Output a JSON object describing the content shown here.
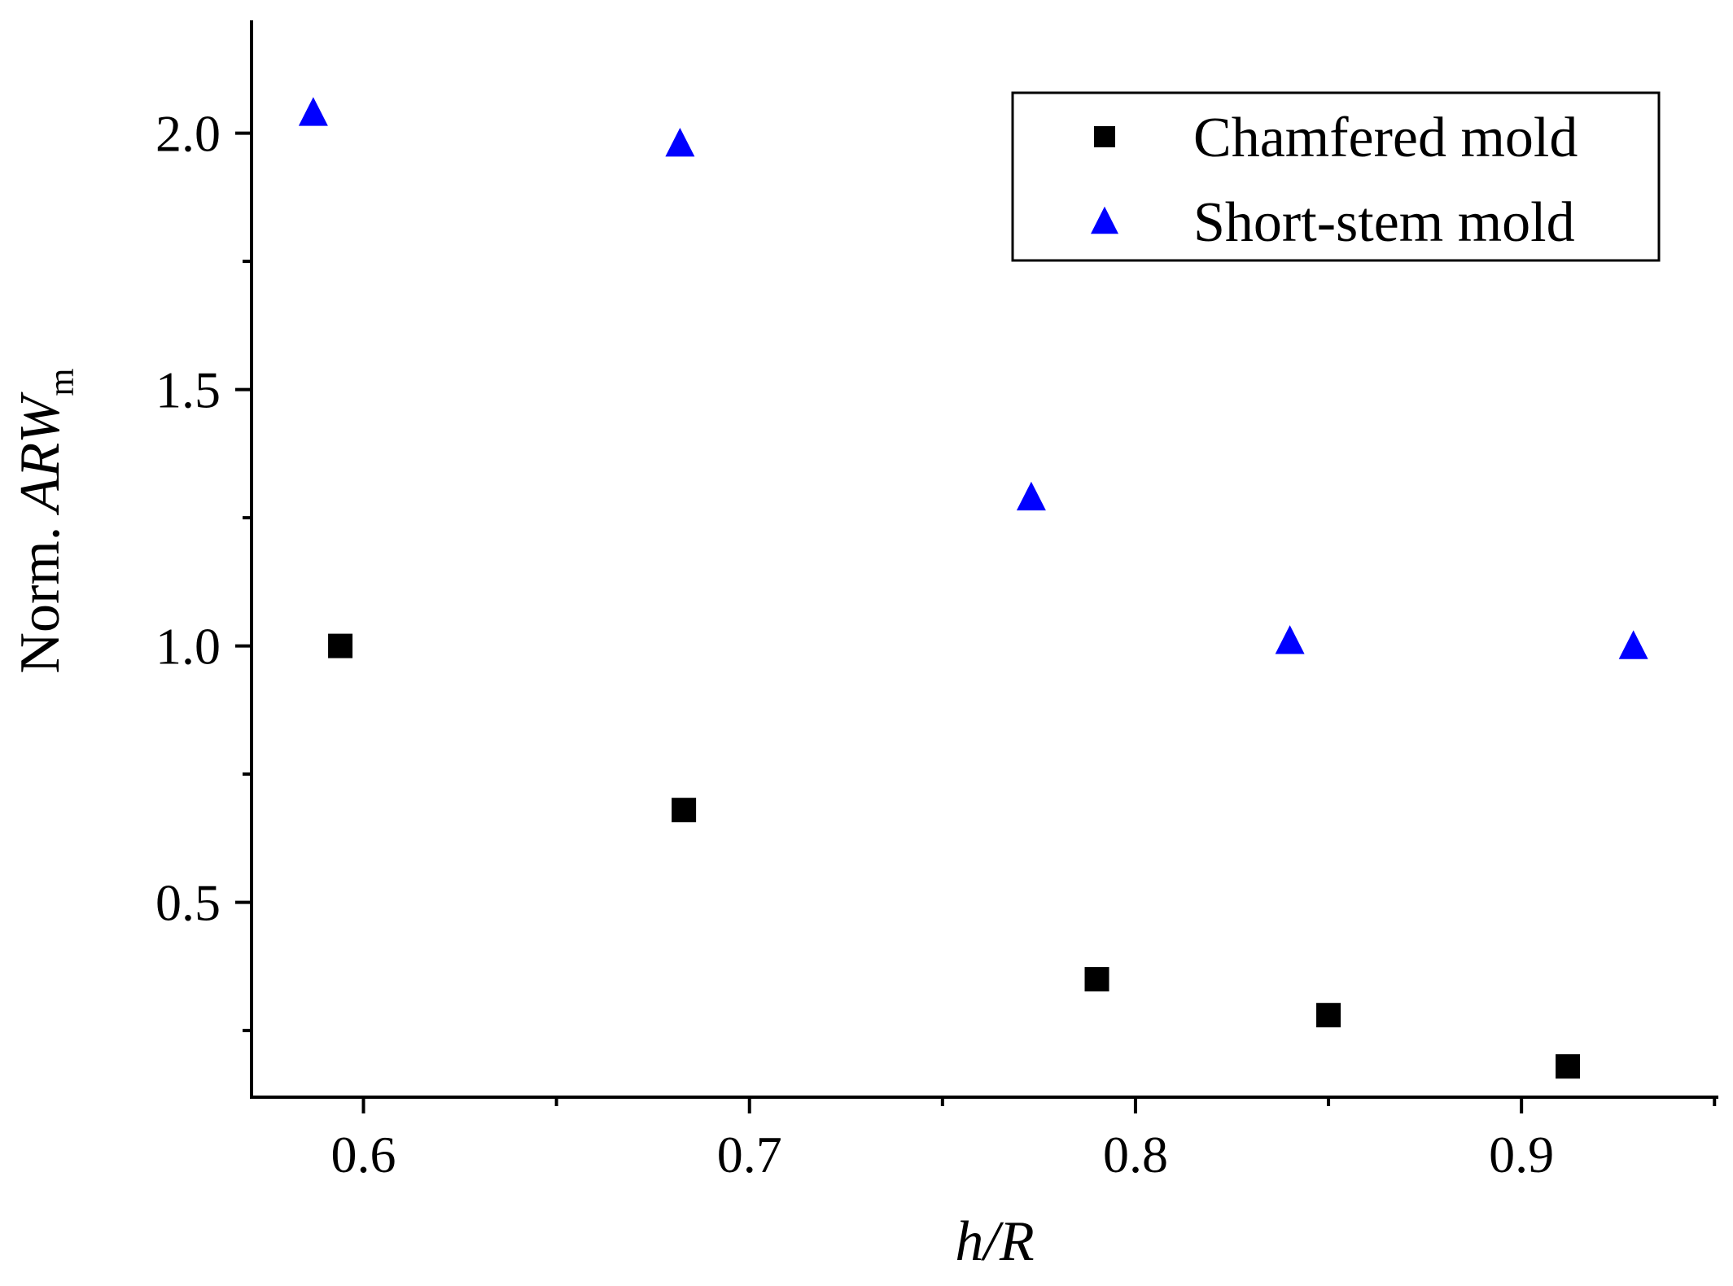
{
  "chart_data": {
    "type": "scatter",
    "title": "",
    "xlabel": {
      "italic_part": "h/R"
    },
    "ylabel": {
      "prefix": "Norm. ",
      "italic_part": "ARW",
      "subscript": "m"
    },
    "xlim": [
      0.571,
      0.951
    ],
    "ylim": [
      0.12,
      2.22
    ],
    "x_ticks": [
      0.6,
      0.7,
      0.8,
      0.9
    ],
    "x_tick_labels": [
      "0.6",
      "0.7",
      "0.8",
      "0.9"
    ],
    "x_minor_ticks": [
      0.65,
      0.75,
      0.85,
      0.95
    ],
    "y_ticks": [
      0.5,
      1.0,
      1.5,
      2.0
    ],
    "y_tick_labels": [
      "0.5",
      "1.0",
      "1.5",
      "2.0"
    ],
    "y_minor_ticks": [
      0.25,
      0.75,
      1.25,
      1.75
    ],
    "grid": false,
    "legend_position": "top-right",
    "series": [
      {
        "name": "Chamfered mold",
        "marker": "square",
        "color": "#000000",
        "points": [
          {
            "x": 0.594,
            "y": 1.0
          },
          {
            "x": 0.683,
            "y": 0.68
          },
          {
            "x": 0.79,
            "y": 0.35
          },
          {
            "x": 0.85,
            "y": 0.28
          },
          {
            "x": 0.912,
            "y": 0.18
          }
        ]
      },
      {
        "name": "Short-stem mold",
        "marker": "triangle",
        "color": "#0000ff",
        "points": [
          {
            "x": 0.587,
            "y": 2.04
          },
          {
            "x": 0.682,
            "y": 1.98
          },
          {
            "x": 0.773,
            "y": 1.29
          },
          {
            "x": 0.84,
            "y": 1.01
          },
          {
            "x": 0.929,
            "y": 1.0
          }
        ]
      }
    ]
  }
}
